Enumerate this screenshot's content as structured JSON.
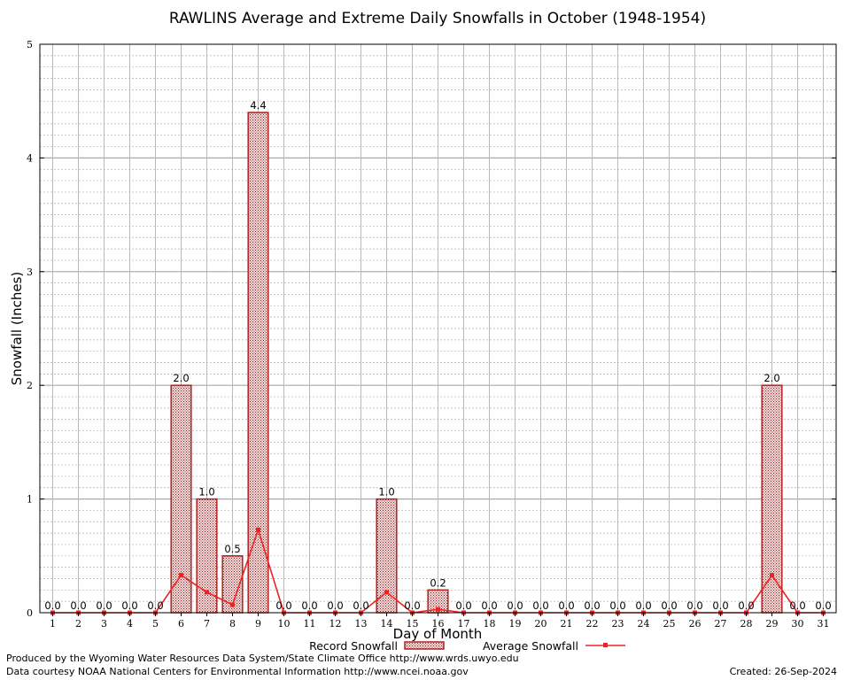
{
  "chart_data": {
    "type": "bar",
    "title": "RAWLINS Average and Extreme Daily Snowfalls in October (1948-1954)",
    "xlabel": "Day of Month",
    "ylabel": "Snowfall (Inches)",
    "ylim": [
      0,
      5
    ],
    "yticks": [
      "0",
      "1",
      "2",
      "3",
      "4",
      "5"
    ],
    "grid": true,
    "legend_position": "bottom",
    "categories": [
      "1",
      "2",
      "3",
      "4",
      "5",
      "6",
      "7",
      "8",
      "9",
      "10",
      "11",
      "12",
      "13",
      "14",
      "15",
      "16",
      "17",
      "18",
      "19",
      "20",
      "21",
      "22",
      "23",
      "24",
      "25",
      "26",
      "27",
      "28",
      "29",
      "30",
      "31"
    ],
    "series": [
      {
        "name": "Record Snowfall",
        "kind": "bar",
        "color": "#b22222",
        "values": [
          0,
          0,
          0,
          0,
          0,
          2.0,
          1.0,
          0.5,
          4.4,
          0,
          0,
          0,
          0,
          1.0,
          0,
          0.2,
          0,
          0,
          0,
          0,
          0,
          0,
          0,
          0,
          0,
          0,
          0,
          0,
          2.0,
          0,
          0
        ],
        "labels": [
          "0.0",
          "0.0",
          "0.0",
          "0.0",
          "0.0",
          "2.0",
          "1.0",
          "0.5",
          "4.4",
          "0.0",
          "0.0",
          "0.0",
          "0.0",
          "1.0",
          "0.0",
          "0.2",
          "0.0",
          "0.0",
          "0.0",
          "0.0",
          "0.0",
          "0.0",
          "0.0",
          "0.0",
          "0.0",
          "0.0",
          "0.0",
          "0.0",
          "2.0",
          "0.0",
          "0.0"
        ]
      },
      {
        "name": "Average Snowfall",
        "kind": "line",
        "color": "#ee2222",
        "values": [
          0,
          0,
          0,
          0,
          0,
          0.33,
          0.18,
          0.07,
          0.73,
          0,
          0,
          0,
          0,
          0.18,
          0,
          0.03,
          0,
          0,
          0,
          0,
          0,
          0,
          0,
          0,
          0,
          0,
          0,
          0,
          0.33,
          0,
          0
        ]
      }
    ]
  },
  "footer": {
    "produced_by": "Produced by the Wyoming Water Resources Data System/State Climate Office http://www.wrds.uwyo.edu",
    "data_courtesy": "Data courtesy NOAA National Centers for Environmental Information http://www.ncei.noaa.gov",
    "created": "Created:  26-Sep-2024"
  }
}
